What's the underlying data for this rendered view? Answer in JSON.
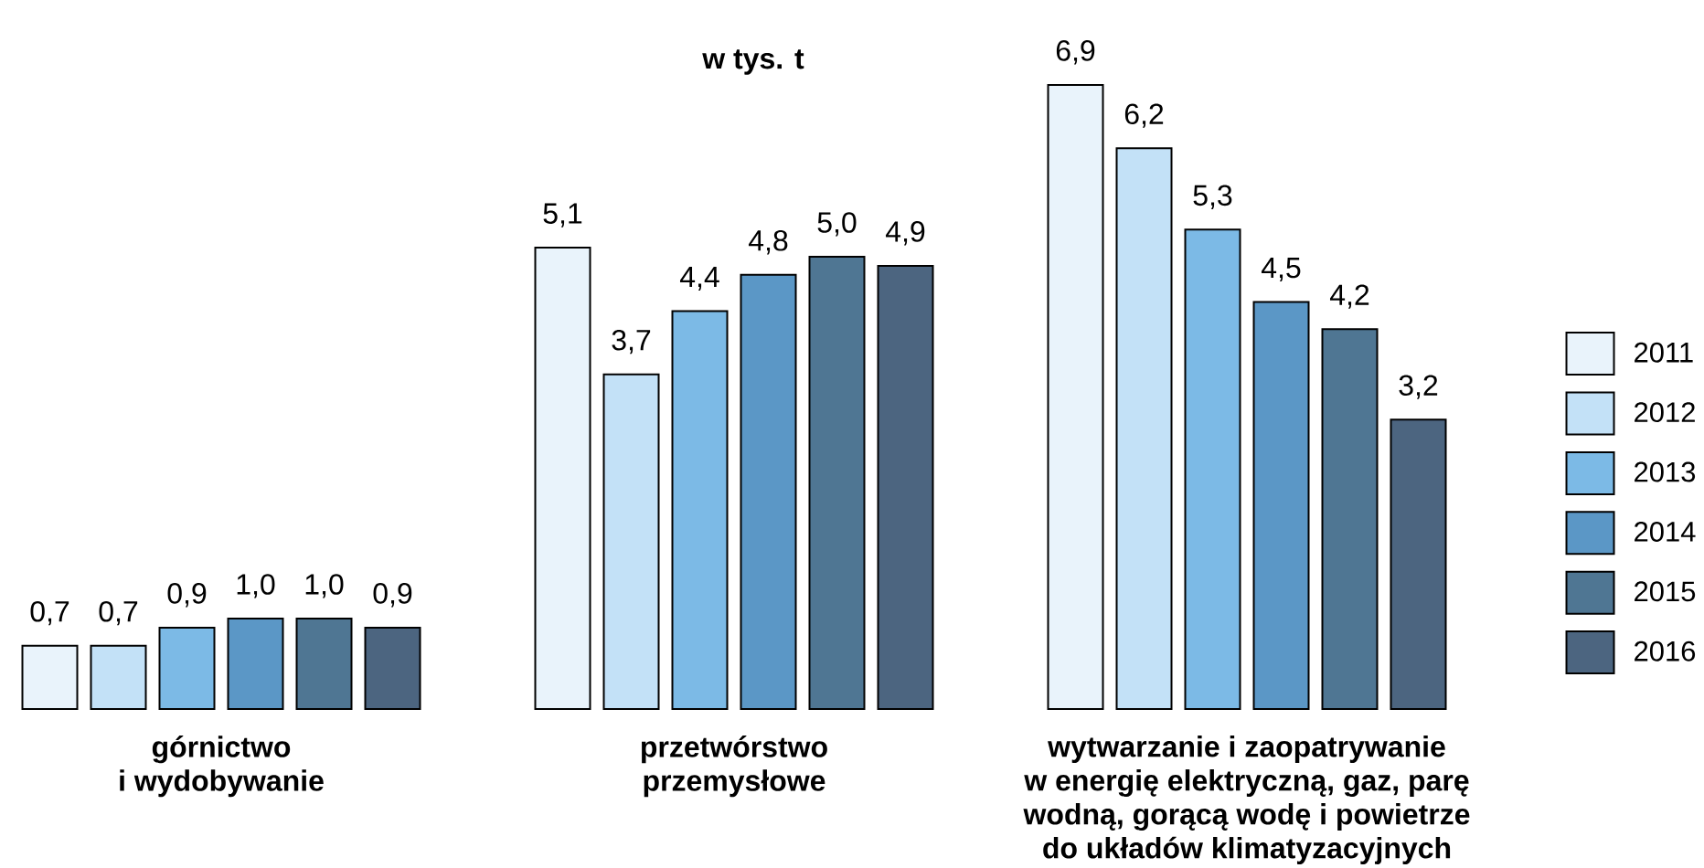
{
  "chart_data": {
    "type": "bar",
    "title": "w tys. t",
    "categories": [
      "górnictwo i wydobywanie",
      "przetwórstwo przemysłowe",
      "wytwarzanie i zaopatrywanie w energię elektryczną, gaz, parę wodną, gorącą wodę i powietrze do układów klimatyzacyjnych"
    ],
    "series": [
      {
        "name": "2011",
        "color": "#e9f3fb",
        "values": [
          0.7,
          5.1,
          6.9
        ],
        "value_labels": [
          "0,7",
          "5,1",
          "6,9"
        ]
      },
      {
        "name": "2012",
        "color": "#c3e1f7",
        "values": [
          0.7,
          3.7,
          6.2
        ],
        "value_labels": [
          "0,7",
          "3,7",
          "6,2"
        ]
      },
      {
        "name": "2013",
        "color": "#7cbae6",
        "values": [
          0.9,
          4.4,
          5.3
        ],
        "value_labels": [
          "0,9",
          "4,4",
          "5,3"
        ]
      },
      {
        "name": "2014",
        "color": "#5b97c6",
        "values": [
          1.0,
          4.8,
          4.5
        ],
        "value_labels": [
          "1,0",
          "4,8",
          "4,5"
        ]
      },
      {
        "name": "2015",
        "color": "#4f7693",
        "values": [
          1.0,
          5.0,
          4.2
        ],
        "value_labels": [
          "1,0",
          "5,0",
          "4,2"
        ]
      },
      {
        "name": "2016",
        "color": "#4c6580",
        "values": [
          0.9,
          4.9,
          3.2
        ],
        "value_labels": [
          "0,9",
          "4,9",
          "3,2"
        ]
      }
    ],
    "legend": "right"
  }
}
